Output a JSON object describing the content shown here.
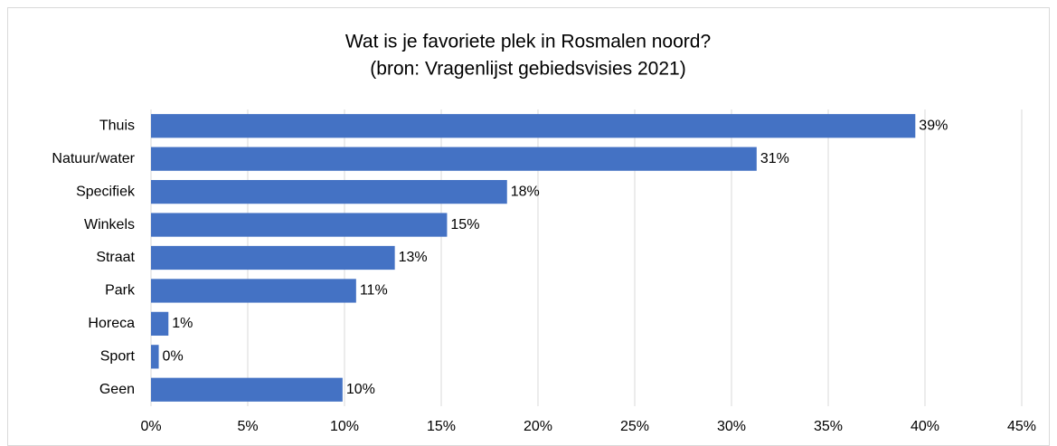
{
  "chart_data": {
    "type": "bar",
    "orientation": "horizontal",
    "title": "Wat is je favoriete plek in Rosmalen noord?",
    "subtitle": "(bron: Vragenlijst gebiedsvisies 2021)",
    "categories": [
      "Thuis",
      "Natuur/water",
      "Specifiek",
      "Winkels",
      "Straat",
      "Park",
      "Horeca",
      "Sport",
      "Geen"
    ],
    "values": [
      39.5,
      31.3,
      18.4,
      15.3,
      12.6,
      10.6,
      0.9,
      0.4,
      9.9
    ],
    "value_labels": [
      "39%",
      "31%",
      "18%",
      "15%",
      "13%",
      "11%",
      "1%",
      "0%",
      "10%"
    ],
    "color": "#4472c4",
    "xlim": [
      0,
      45
    ],
    "xticks": [
      {
        "value": 0,
        "label": "0%"
      },
      {
        "value": 5,
        "label": "5%"
      },
      {
        "value": 10,
        "label": "10%"
      },
      {
        "value": 15,
        "label": "15%"
      },
      {
        "value": 20,
        "label": "20%"
      },
      {
        "value": 25,
        "label": "25%"
      },
      {
        "value": 30,
        "label": "30%"
      },
      {
        "value": 35,
        "label": "35%"
      },
      {
        "value": 40,
        "label": "40%"
      },
      {
        "value": 45,
        "label": "45%"
      }
    ],
    "grid": true
  }
}
